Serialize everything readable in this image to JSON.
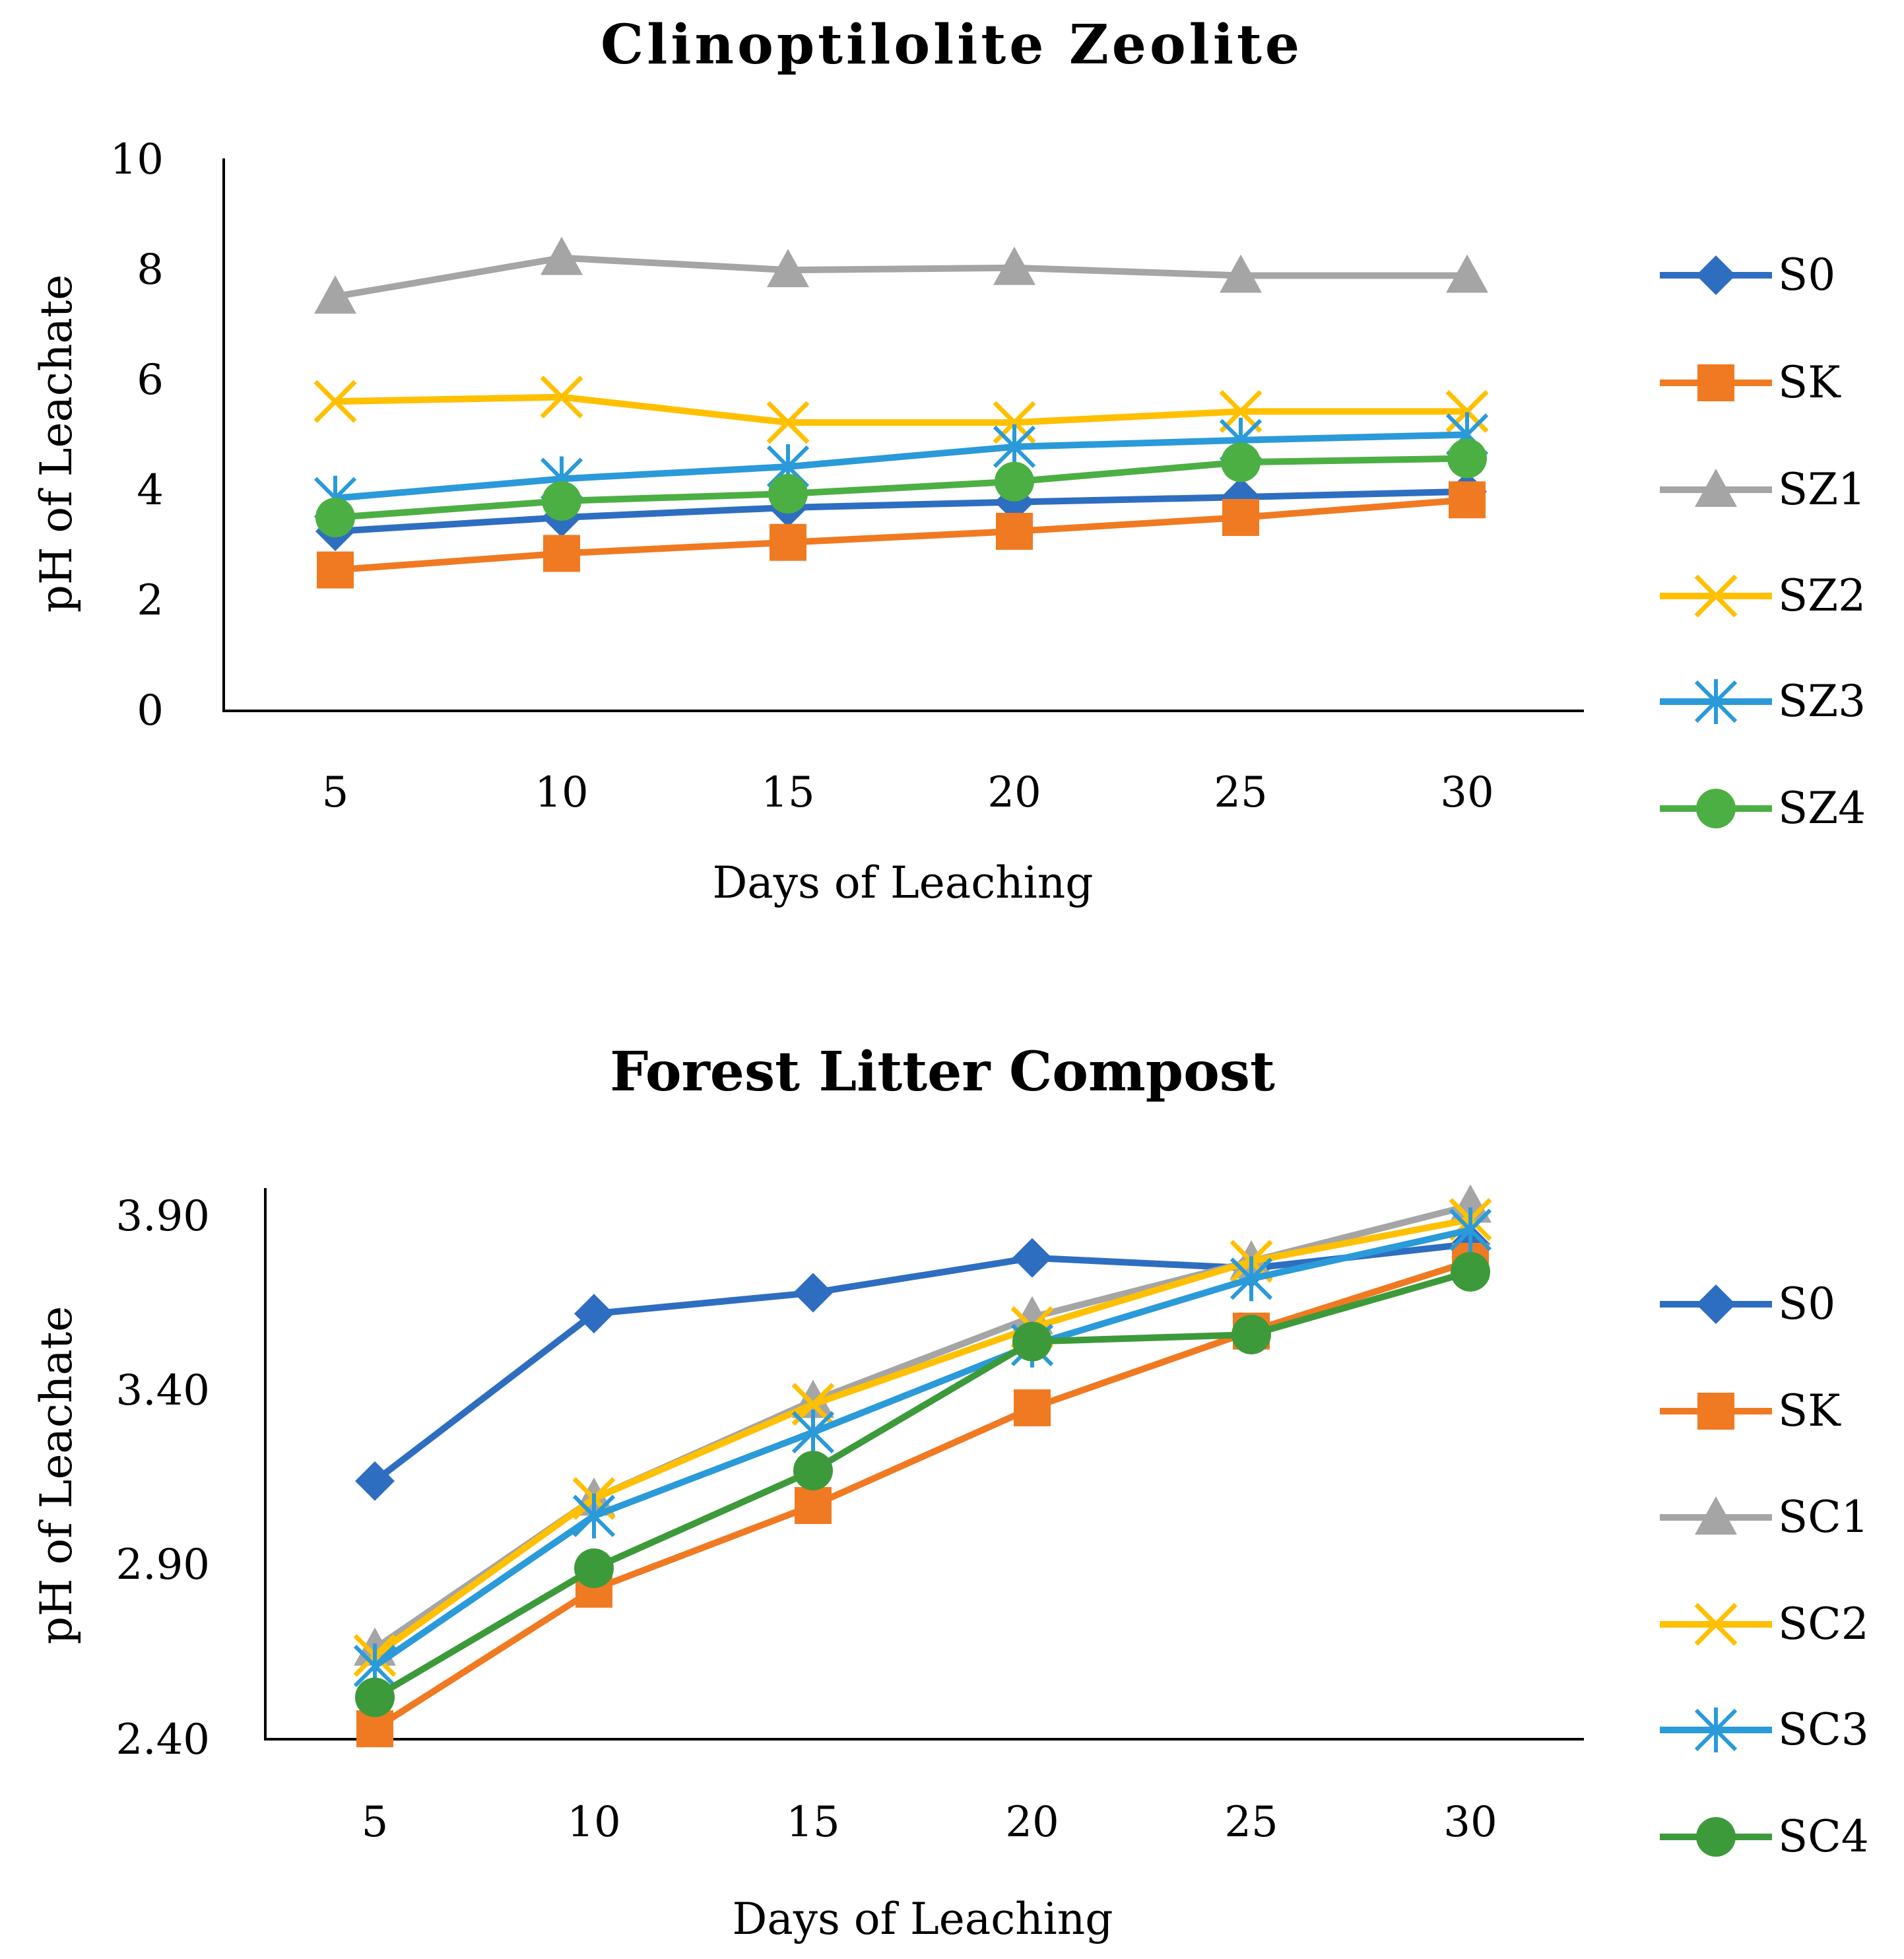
{
  "colors": {
    "S0": "#2E6EC0",
    "SK": "#F07A22",
    "S_1": "#A5A5A5",
    "S_2": "#FFC000",
    "S_3": "#2A9AD9",
    "S_4": "#4CAF43"
  },
  "chart_data": [
    {
      "type": "line",
      "title": "Clinoptilolite Zeolite",
      "xlabel": "Days of Leaching",
      "ylabel": "pH of Leachate",
      "x": [
        5,
        10,
        15,
        20,
        25,
        30
      ],
      "x_tick_labels": [
        "5",
        "10",
        "15",
        "20",
        "25",
        "30"
      ],
      "ylim": [
        0,
        10
      ],
      "y_ticks": [
        0,
        2,
        4,
        6,
        8,
        10
      ],
      "y_tick_labels": [
        "0",
        "2",
        "4",
        "6",
        "8",
        "10"
      ],
      "legend_position": "right",
      "grid": false,
      "series": [
        {
          "name": "S0",
          "marker": "diamond",
          "color": "#2E6EC0",
          "values": [
            3.25,
            3.5,
            3.68,
            3.78,
            3.87,
            3.97
          ]
        },
        {
          "name": "SK",
          "marker": "square",
          "color": "#F07A22",
          "values": [
            2.55,
            2.85,
            3.05,
            3.25,
            3.5,
            3.82
          ]
        },
        {
          "name": "SZ1",
          "marker": "triangle",
          "color": "#A5A5A5",
          "values": [
            7.5,
            8.2,
            7.98,
            8.02,
            7.88,
            7.88
          ]
        },
        {
          "name": "SZ2",
          "marker": "x",
          "color": "#FFC000",
          "values": [
            5.6,
            5.68,
            5.22,
            5.22,
            5.42,
            5.42
          ]
        },
        {
          "name": "SZ3",
          "marker": "asterisk",
          "color": "#2A9AD9",
          "values": [
            3.85,
            4.2,
            4.42,
            4.78,
            4.9,
            5.0
          ]
        },
        {
          "name": "SZ4",
          "marker": "circle",
          "color": "#4CAF43",
          "values": [
            3.5,
            3.8,
            3.93,
            4.15,
            4.5,
            4.57
          ]
        }
      ]
    },
    {
      "type": "line",
      "title": "Forest Litter Compost",
      "xlabel": "Days of Leaching",
      "ylabel": "pH of Leachate",
      "x": [
        5,
        10,
        15,
        20,
        25,
        30
      ],
      "x_tick_labels": [
        "5",
        "10",
        "15",
        "20",
        "25",
        "30"
      ],
      "ylim": [
        2.4,
        3.98
      ],
      "y_ticks": [
        2.4,
        2.9,
        3.4,
        3.9
      ],
      "y_tick_labels": [
        "2.40",
        "2.90",
        "3.40",
        "3.90"
      ],
      "legend_position": "right",
      "grid": false,
      "series": [
        {
          "name": "S0",
          "marker": "diamond",
          "color": "#2E6EC0",
          "values": [
            3.14,
            3.62,
            3.68,
            3.78,
            3.75,
            3.82
          ]
        },
        {
          "name": "SK",
          "marker": "square",
          "color": "#F07A22",
          "values": [
            2.43,
            2.83,
            3.07,
            3.35,
            3.57,
            3.77
          ]
        },
        {
          "name": "SC1",
          "marker": "triangle",
          "color": "#A5A5A5",
          "values": [
            2.66,
            3.09,
            3.37,
            3.61,
            3.77,
            3.93
          ]
        },
        {
          "name": "SC2",
          "marker": "x",
          "color": "#FFC000",
          "values": [
            2.64,
            3.09,
            3.36,
            3.58,
            3.77,
            3.89
          ]
        },
        {
          "name": "SC3",
          "marker": "asterisk",
          "color": "#2A9AD9",
          "values": [
            2.61,
            3.04,
            3.28,
            3.53,
            3.72,
            3.86
          ]
        },
        {
          "name": "SC4",
          "marker": "circle",
          "color": "#3D9A3A",
          "values": [
            2.52,
            2.89,
            3.17,
            3.54,
            3.56,
            3.74
          ]
        }
      ]
    }
  ]
}
